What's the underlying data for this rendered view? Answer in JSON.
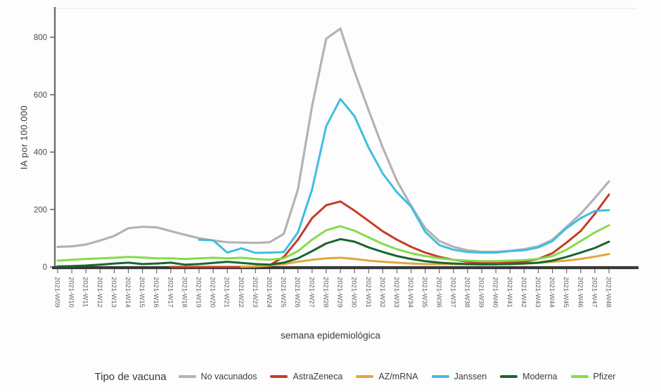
{
  "figure": {
    "y_axis_title": "IA por 100.000",
    "x_axis_title": "semana epidemiológica",
    "legend_title": "Tipo de vacuna"
  },
  "chart_data": {
    "type": "line",
    "title": "",
    "xlabel": "semana epidemiológica",
    "ylabel": "IA por 100.000",
    "legend_title": "Tipo de vacuna",
    "legend_position": "bottom",
    "grid": false,
    "ylim": [
      0,
      870
    ],
    "y_ticks": [
      0,
      200,
      400,
      600,
      800
    ],
    "x": [
      "2021-W09",
      "2021-W10",
      "2021-W11",
      "2021-W12",
      "2021-W13",
      "2021-W14",
      "2021-W15",
      "2021-W16",
      "2021-W17",
      "2021-W18",
      "2021-W19",
      "2021-W20",
      "2021-W21",
      "2021-W22",
      "2021-W23",
      "2021-W24",
      "2021-W25",
      "2021-W26",
      "2021-W27",
      "2021-W28",
      "2021-W29",
      "2021-W30",
      "2021-W31",
      "2021-W32",
      "2021-W33",
      "2021-W34",
      "2021-W35",
      "2021-W36",
      "2021-W37",
      "2021-W38",
      "2021-W39",
      "2021-W40",
      "2021-W41",
      "2021-W42",
      "2021-W43",
      "2021-W44",
      "2021-W45",
      "2021-W46",
      "2021-W47",
      "2021-W48"
    ],
    "series": [
      {
        "name": "No vacunados",
        "color": "#b3b3b3",
        "width": 3.2,
        "values": [
          70,
          72,
          78,
          92,
          108,
          135,
          140,
          138,
          125,
          112,
          100,
          92,
          86,
          85,
          84,
          86,
          115,
          270,
          560,
          795,
          830,
          680,
          545,
          415,
          300,
          213,
          135,
          90,
          70,
          58,
          53,
          53,
          56,
          62,
          72,
          95,
          140,
          185,
          240,
          298
        ]
      },
      {
        "name": "AstraZeneca",
        "color": "#c93a28",
        "width": 3,
        "values": [
          null,
          null,
          null,
          null,
          null,
          null,
          null,
          null,
          0,
          0,
          0,
          0,
          0,
          0,
          2,
          6,
          35,
          95,
          170,
          215,
          228,
          196,
          160,
          124,
          95,
          70,
          50,
          35,
          25,
          18,
          15,
          14,
          15,
          18,
          28,
          48,
          85,
          125,
          185,
          252
        ]
      },
      {
        "name": "AZ/mRNA",
        "color": "#e2a63d",
        "width": 3,
        "values": [
          null,
          null,
          null,
          null,
          null,
          null,
          null,
          null,
          null,
          null,
          null,
          null,
          null,
          1,
          2,
          5,
          10,
          18,
          25,
          30,
          32,
          28,
          22,
          18,
          15,
          12,
          10,
          10,
          10,
          9,
          9,
          10,
          10,
          12,
          14,
          18,
          22,
          28,
          36,
          45
        ]
      },
      {
        "name": "Janssen",
        "color": "#41bde0",
        "width": 3,
        "values": [
          null,
          null,
          null,
          null,
          null,
          null,
          null,
          null,
          null,
          null,
          95,
          93,
          50,
          65,
          49,
          50,
          52,
          120,
          270,
          490,
          585,
          525,
          415,
          325,
          260,
          210,
          122,
          76,
          60,
          52,
          50,
          50,
          55,
          58,
          68,
          90,
          135,
          170,
          195,
          198
        ]
      },
      {
        "name": "Moderna",
        "color": "#19662e",
        "width": 3,
        "values": [
          2,
          3,
          5,
          8,
          12,
          15,
          10,
          12,
          15,
          8,
          10,
          14,
          18,
          14,
          10,
          8,
          15,
          30,
          55,
          82,
          97,
          88,
          68,
          52,
          38,
          28,
          20,
          15,
          12,
          10,
          9,
          9,
          10,
          12,
          15,
          22,
          35,
          50,
          66,
          88
        ]
      },
      {
        "name": "Pfizer",
        "color": "#84dc4a",
        "width": 3,
        "values": [
          22,
          25,
          28,
          30,
          32,
          35,
          33,
          30,
          30,
          28,
          30,
          32,
          30,
          32,
          28,
          25,
          30,
          55,
          95,
          128,
          142,
          126,
          103,
          80,
          62,
          48,
          38,
          30,
          25,
          22,
          20,
          20,
          22,
          24,
          28,
          38,
          60,
          90,
          120,
          145
        ]
      }
    ]
  }
}
